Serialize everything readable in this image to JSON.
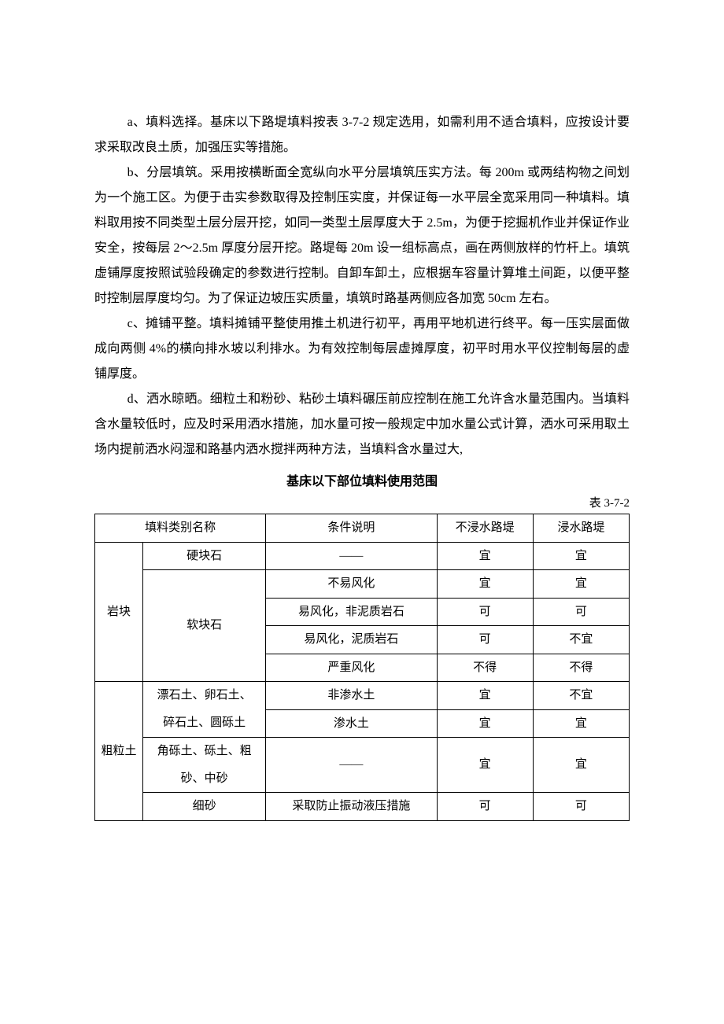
{
  "paragraphs": {
    "a": "a、填料选择。基床以下路堤填料按表 3-7-2 规定选用，如需利用不适合填料，应按设计要求采取改良土质，加强压实等措施。",
    "b": "b、分层填筑。采用按横断面全宽纵向水平分层填筑压实方法。每 200m 或两结构物之间划为一个施工区。为便于击实参数取得及控制压实度，并保证每一水平层全宽采用同一种填料。填料取用按不同类型土层分层开挖，如同一类型土层厚度大于 2.5m，为便于挖掘机作业并保证作业安全，按每层 2～2.5m 厚度分层开挖。路堤每 20m 设一组标高点，画在两侧放样的竹杆上。填筑虚铺厚度按照试验段确定的参数进行控制。自卸车卸土，应根据车容量计算堆土间距，以便平整时控制层厚度均匀。为了保证边坡压实质量，填筑时路基两侧应各加宽 50cm 左右。",
    "c": "c、摊铺平整。填料摊铺平整使用推土机进行初平，再用平地机进行终平。每一压实层面做成向两侧 4%的横向排水坡以利排水。为有效控制每层虚摊厚度，初平时用水平仪控制每层的虚铺厚度。",
    "d": "d、洒水晾晒。细粒土和粉砂、粘砂土填料碾压前应控制在施工允许含水量范围内。当填料含水量较低时，应及时采用洒水措施，加水量可按一般规定中加水量公式计算，洒水可采用取土场内提前洒水闷湿和路基内洒水搅拌两种方法，当填料含水量过大,"
  },
  "table_title": "基床以下部位填料使用范围",
  "table_label": "表 3-7-2",
  "table": {
    "headers": {
      "cat": "填料类别名称",
      "cond": "条件说明",
      "dry": "不浸水路堤",
      "wet": "浸水路堤"
    },
    "group1": {
      "label": "岩块",
      "sub1": "硬块石",
      "sub2": "软块石",
      "rows": [
        {
          "cond": "——",
          "dry": "宜",
          "wet": "宜"
        },
        {
          "cond": "不易风化",
          "dry": "宜",
          "wet": "宜"
        },
        {
          "cond": "易风化，非泥质岩石",
          "dry": "可",
          "wet": "可"
        },
        {
          "cond": "易风化，泥质岩石",
          "dry": "可",
          "wet": "不宜"
        },
        {
          "cond": "严重风化",
          "dry": "不得",
          "wet": "不得"
        }
      ]
    },
    "group2": {
      "label": "粗粒土",
      "sub1a": "漂石土、卵石土、",
      "sub1b": "碎石土、圆砾土",
      "sub2a": "角砾土、砾土、粗",
      "sub2b": "砂、中砂",
      "sub3": "细砂",
      "rows": [
        {
          "cond": "非渗水土",
          "dry": "宜",
          "wet": "不宜"
        },
        {
          "cond": "渗水土",
          "dry": "宜",
          "wet": "宜"
        },
        {
          "cond": "——",
          "dry": "宜",
          "wet": "宜"
        },
        {
          "cond": "采取防止振动液压措施",
          "dry": "可",
          "wet": "可"
        }
      ]
    }
  }
}
